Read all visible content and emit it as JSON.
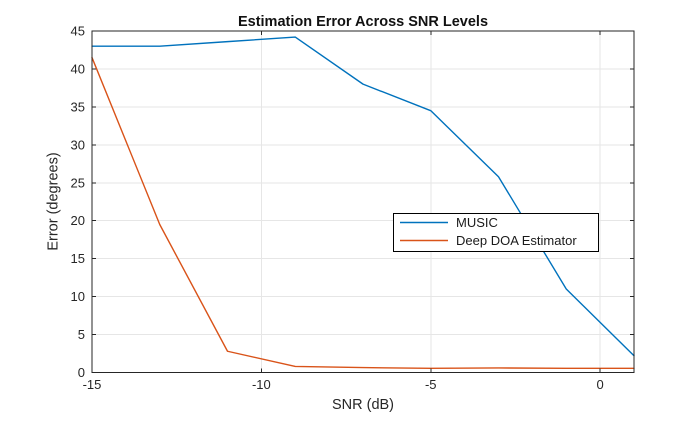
{
  "window": {
    "background": "#ffffff"
  },
  "chart_data": {
    "type": "line",
    "title": "Estimation Error Across SNR Levels",
    "xlabel": "SNR (dB)",
    "ylabel": "Error (degrees)",
    "xlim": [
      -15,
      1
    ],
    "ylim": [
      0,
      45
    ],
    "x_ticks": [
      -15,
      -10,
      -5,
      0
    ],
    "x_tick_labels": [
      "-15",
      "-10",
      "-5",
      "0"
    ],
    "y_ticks": [
      0,
      5,
      10,
      15,
      20,
      25,
      30,
      35,
      40,
      45
    ],
    "y_tick_labels": [
      "0",
      "5",
      "10",
      "15",
      "20",
      "25",
      "30",
      "35",
      "40",
      "45"
    ],
    "grid": true,
    "legend_position": "middle-right",
    "x": [
      -15,
      -13,
      -11,
      -9,
      -7,
      -5,
      -3,
      -1,
      1
    ],
    "series": [
      {
        "name": "MUSIC",
        "color": "#0072BD",
        "values": [
          43,
          43,
          43.6,
          44.2,
          38,
          34.5,
          25.8,
          11,
          2.2
        ]
      },
      {
        "name": "Deep DOA Estimator",
        "color": "#D95319",
        "values": [
          41.5,
          19.5,
          2.8,
          0.8,
          0.65,
          0.55,
          0.6,
          0.55,
          0.55
        ]
      }
    ],
    "colors": {
      "grid": "#e6e6e6",
      "axis": "#262626",
      "tick_label": "#262626",
      "title": "#111111",
      "legend_border": "#000000",
      "legend_background": "#ffffff"
    }
  }
}
